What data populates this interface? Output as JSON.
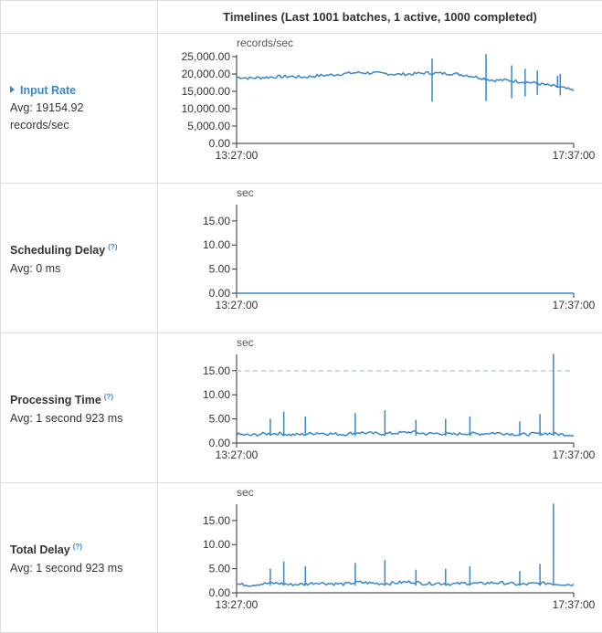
{
  "header": {
    "title": "Timelines (Last 1001 batches, 1 active, 1000 completed)"
  },
  "rows": [
    {
      "name": "Input Rate",
      "help": "",
      "avg": "Avg: 19154.92",
      "avg_line2": "records/sec"
    },
    {
      "name": "Scheduling Delay",
      "help": "(?)",
      "avg": "Avg: 0 ms",
      "avg_line2": ""
    },
    {
      "name": "Processing Time",
      "help": "(?)",
      "avg": "Avg: 1 second 923 ms",
      "avg_line2": ""
    },
    {
      "name": "Total Delay",
      "help": "(?)",
      "avg": "Avg: 1 second 923 ms",
      "avg_line2": ""
    }
  ],
  "colors": {
    "series": "#3a87c8",
    "link": "#3a87c8",
    "threshold": "#a9d7e0",
    "border": "#dddddd"
  },
  "chart_data": [
    {
      "type": "line",
      "title": "",
      "unit": "records/sec",
      "xlabel": "",
      "ylabel": "records/sec",
      "x_ticks": [
        "13:27:00",
        "17:37:00"
      ],
      "y_ticks": [
        "25,000.00",
        "20,000.00",
        "15,000.00",
        "10,000.00",
        "5,000.00",
        "0.00"
      ],
      "ylim": [
        0,
        25000
      ],
      "x": [
        "13:27:00",
        "13:37:00",
        "13:47:00",
        "13:57:00",
        "14:07:00",
        "14:17:00",
        "14:27:00",
        "14:37:00",
        "14:47:00",
        "14:57:00",
        "15:07:00",
        "15:17:00",
        "15:27:00",
        "15:37:00",
        "15:47:00",
        "15:57:00",
        "16:07:00",
        "16:17:00",
        "16:27:00",
        "16:37:00",
        "16:47:00",
        "16:57:00",
        "17:07:00",
        "17:17:00",
        "17:27:00",
        "17:37:00"
      ],
      "series": [
        {
          "values": [
            19100,
            18800,
            19000,
            19200,
            19300,
            19100,
            19500,
            19700,
            20100,
            20400,
            20300,
            20100,
            19900,
            20000,
            20300,
            20200,
            20100,
            19700,
            19000,
            18200,
            18200,
            17800,
            17500,
            16800,
            16200,
            15200
          ]
        }
      ],
      "spikes": [
        {
          "x": "15:52:00",
          "low": 12000,
          "high": 24500
        },
        {
          "x": "16:32:00",
          "low": 12200,
          "high": 27000
        },
        {
          "x": "16:51:00",
          "low": 13000,
          "high": 22500
        },
        {
          "x": "17:01:00",
          "low": 13500,
          "high": 21500
        },
        {
          "x": "17:10:00",
          "low": 14000,
          "high": 21000
        },
        {
          "x": "17:25:00",
          "low": 16000,
          "high": 19500
        },
        {
          "x": "17:27:00",
          "low": 13800,
          "high": 20000
        }
      ],
      "threshold": null,
      "grid": false
    },
    {
      "type": "line",
      "title": "",
      "unit": "sec",
      "xlabel": "",
      "ylabel": "sec",
      "x_ticks": [
        "13:27:00",
        "17:37:00"
      ],
      "y_ticks": [
        "15.00",
        "10.00",
        "5.00",
        "0.00"
      ],
      "ylim": [
        0,
        18
      ],
      "x": [
        "13:27:00",
        "17:37:00"
      ],
      "series": [
        {
          "values": [
            0,
            0
          ]
        }
      ],
      "spikes": [],
      "threshold": null,
      "grid": false
    },
    {
      "type": "line",
      "title": "",
      "unit": "sec",
      "xlabel": "",
      "ylabel": "sec",
      "x_ticks": [
        "13:27:00",
        "17:37:00"
      ],
      "y_ticks": [
        "15.00",
        "10.00",
        "5.00",
        "0.00"
      ],
      "ylim": [
        0,
        18
      ],
      "x": [
        "13:27:00",
        "13:37:00",
        "13:47:00",
        "13:57:00",
        "14:07:00",
        "14:17:00",
        "14:27:00",
        "14:37:00",
        "14:47:00",
        "14:57:00",
        "15:07:00",
        "15:17:00",
        "15:27:00",
        "15:37:00",
        "15:47:00",
        "15:57:00",
        "16:07:00",
        "16:17:00",
        "16:27:00",
        "16:37:00",
        "16:47:00",
        "16:57:00",
        "17:07:00",
        "17:17:00",
        "17:27:00",
        "17:37:00"
      ],
      "series": [
        {
          "values": [
            1.8,
            1.6,
            1.9,
            2.0,
            1.7,
            1.8,
            2.1,
            1.9,
            1.8,
            2.2,
            2.0,
            1.9,
            2.1,
            2.3,
            1.9,
            2.0,
            1.8,
            2.0,
            1.9,
            2.1,
            2.0,
            1.7,
            1.9,
            2.0,
            1.8,
            1.7
          ]
        }
      ],
      "spikes": [
        {
          "x": "13:52:00",
          "low": 1.5,
          "high": 5.0
        },
        {
          "x": "14:02:00",
          "low": 1.5,
          "high": 6.5
        },
        {
          "x": "14:18:00",
          "low": 1.5,
          "high": 5.5
        },
        {
          "x": "14:55:00",
          "low": 1.5,
          "high": 6.2
        },
        {
          "x": "15:17:00",
          "low": 1.5,
          "high": 6.8
        },
        {
          "x": "15:40:00",
          "low": 1.5,
          "high": 4.8
        },
        {
          "x": "16:02:00",
          "low": 1.5,
          "high": 5.0
        },
        {
          "x": "16:20:00",
          "low": 1.5,
          "high": 5.5
        },
        {
          "x": "16:57:00",
          "low": 1.5,
          "high": 4.5
        },
        {
          "x": "17:12:00",
          "low": 1.5,
          "high": 6.0
        },
        {
          "x": "17:22:00",
          "low": 1.5,
          "high": 18.5
        }
      ],
      "threshold": 15,
      "grid": false
    },
    {
      "type": "line",
      "title": "",
      "unit": "sec",
      "xlabel": "",
      "ylabel": "sec",
      "x_ticks": [
        "13:27:00",
        "17:37:00"
      ],
      "y_ticks": [
        "15.00",
        "10.00",
        "5.00",
        "0.00"
      ],
      "ylim": [
        0,
        18
      ],
      "x": [
        "13:27:00",
        "13:37:00",
        "13:47:00",
        "13:57:00",
        "14:07:00",
        "14:17:00",
        "14:27:00",
        "14:37:00",
        "14:47:00",
        "14:57:00",
        "15:07:00",
        "15:17:00",
        "15:27:00",
        "15:37:00",
        "15:47:00",
        "15:57:00",
        "16:07:00",
        "16:17:00",
        "16:27:00",
        "16:37:00",
        "16:47:00",
        "16:57:00",
        "17:07:00",
        "17:17:00",
        "17:27:00",
        "17:37:00"
      ],
      "series": [
        {
          "values": [
            1.8,
            1.6,
            1.9,
            2.0,
            1.7,
            1.8,
            2.1,
            1.9,
            1.8,
            2.2,
            2.0,
            1.9,
            2.1,
            2.3,
            1.9,
            2.0,
            1.8,
            2.0,
            1.9,
            2.1,
            2.0,
            1.7,
            1.9,
            2.0,
            1.8,
            1.7
          ]
        }
      ],
      "spikes": [
        {
          "x": "13:52:00",
          "low": 1.5,
          "high": 5.0
        },
        {
          "x": "14:02:00",
          "low": 1.5,
          "high": 6.5
        },
        {
          "x": "14:18:00",
          "low": 1.5,
          "high": 5.5
        },
        {
          "x": "14:55:00",
          "low": 1.5,
          "high": 6.2
        },
        {
          "x": "15:17:00",
          "low": 1.5,
          "high": 6.8
        },
        {
          "x": "15:40:00",
          "low": 1.5,
          "high": 4.8
        },
        {
          "x": "16:02:00",
          "low": 1.5,
          "high": 5.0
        },
        {
          "x": "16:20:00",
          "low": 1.5,
          "high": 5.5
        },
        {
          "x": "16:57:00",
          "low": 1.5,
          "high": 4.5
        },
        {
          "x": "17:12:00",
          "low": 1.5,
          "high": 6.0
        },
        {
          "x": "17:22:00",
          "low": 1.5,
          "high": 18.5
        }
      ],
      "threshold": null,
      "grid": false
    }
  ]
}
